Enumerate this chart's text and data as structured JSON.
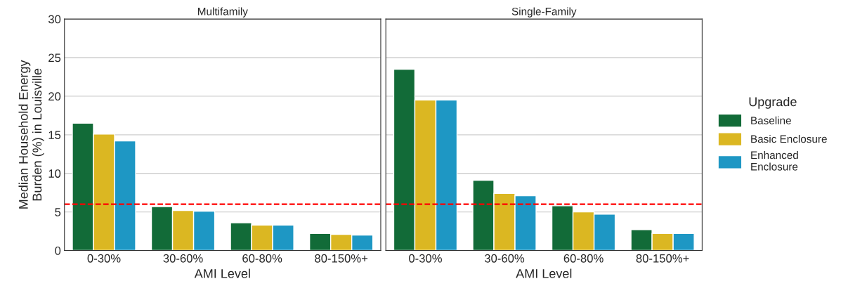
{
  "chart_data": [
    {
      "type": "bar",
      "title": "Multifamily",
      "xlabel": "AMI Level",
      "ylabel": "Median Household Energy\nBurden (%) in Louisville",
      "categories": [
        "0-30%",
        "30-60%",
        "60-80%",
        "80-150%+"
      ],
      "series": [
        {
          "color": "#126b38",
          "values": [
            16.5,
            5.7,
            3.6,
            2.2
          ]
        },
        {
          "color": "#dbb722",
          "values": [
            15.1,
            5.2,
            3.3,
            2.1
          ]
        },
        {
          "color": "#1e97c4",
          "values": [
            14.2,
            5.1,
            3.3,
            2.0
          ]
        }
      ],
      "ylim": [
        0,
        30
      ],
      "yticks": [
        0,
        5,
        10,
        15,
        20,
        25,
        30
      ],
      "grid": "y",
      "ref_lines": [
        {
          "axis": "y",
          "value": 6,
          "color": "#ff0000",
          "line_style": "dashed"
        }
      ]
    },
    {
      "type": "bar",
      "title": "Single-Family",
      "xlabel": "AMI Level",
      "categories": [
        "0-30%",
        "30-60%",
        "60-80%",
        "80-150%+"
      ],
      "series": [
        {
          "name": "Baseline",
          "color": "#126b38",
          "values": [
            23.5,
            9.1,
            5.8,
            2.7
          ]
        },
        {
          "name": "Basic Enclosure",
          "color": "#dbb722",
          "values": [
            19.5,
            7.4,
            5.0,
            2.2
          ]
        },
        {
          "name": "Enhanced\nEnclosure",
          "color": "#1e97c4",
          "values": [
            19.5,
            7.1,
            4.7,
            2.2
          ]
        }
      ],
      "ylim": [
        0,
        30
      ],
      "yticks": [
        0,
        5,
        10,
        15,
        20,
        25,
        30
      ],
      "grid": "y",
      "tick_labels": "x",
      "legend": "right",
      "legend_title": "Upgrade",
      "ref_lines": [
        {
          "axis": "y",
          "value": 6,
          "color": "#ff0000",
          "line_style": "dashed"
        }
      ]
    }
  ]
}
